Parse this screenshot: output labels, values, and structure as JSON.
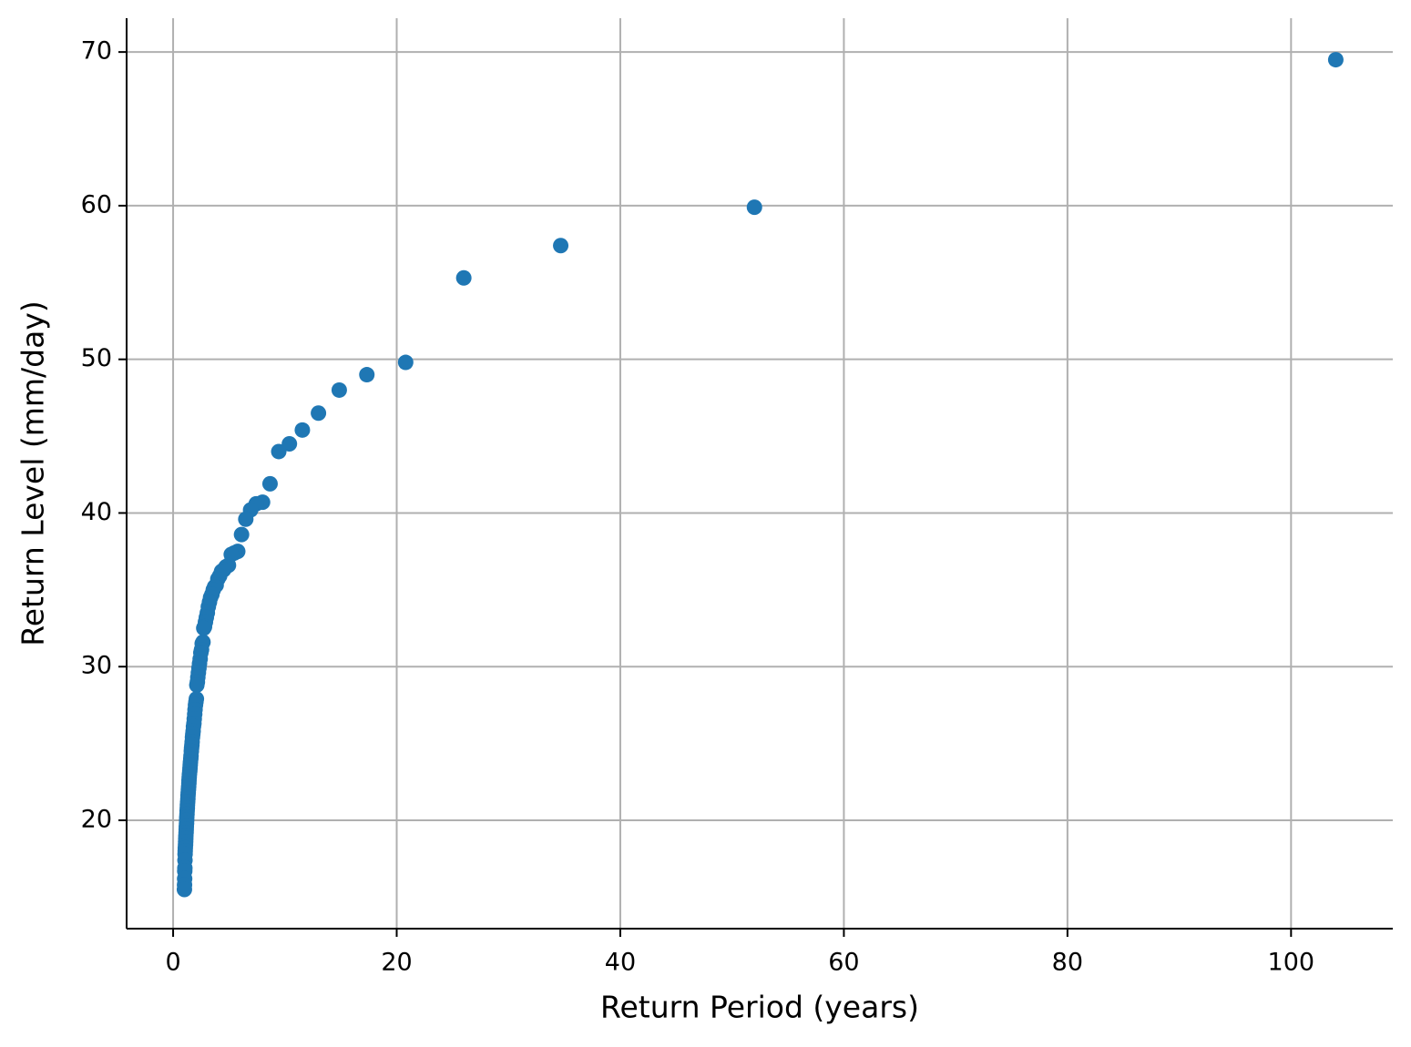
{
  "chart_data": {
    "type": "scatter",
    "x_label": "Return Period (years)",
    "y_label": "Return Level (mm/day)",
    "color": "#1f77b4",
    "grid": true,
    "xlim": [
      -4.16,
      109.1
    ],
    "ylim": [
      12.95,
      72.2
    ],
    "xticks": [
      0,
      20,
      40,
      60,
      80,
      100
    ],
    "yticks": [
      20,
      30,
      40,
      50,
      60,
      70
    ],
    "x": [
      104,
      52,
      34.67,
      26,
      20.8,
      17.33,
      14.86,
      13,
      11.56,
      10.4,
      9.45,
      8.67,
      8,
      7.43,
      6.93,
      6.5,
      6.12,
      5.78,
      5.47,
      5.2,
      4.95,
      4.73,
      4.52,
      4.33,
      4.16,
      4,
      3.85,
      3.71,
      3.59,
      3.47,
      3.35,
      3.25,
      3.15,
      3.06,
      2.97,
      2.89,
      2.81,
      2.74,
      2.67,
      2.6,
      2.54,
      2.48,
      2.42,
      2.36,
      2.31,
      2.26,
      2.21,
      2.17,
      2.12,
      2.08,
      2.04,
      2,
      1.96,
      1.93,
      1.89,
      1.86,
      1.82,
      1.79,
      1.76,
      1.73,
      1.7,
      1.68,
      1.65,
      1.63,
      1.6,
      1.58,
      1.55,
      1.53,
      1.51,
      1.49,
      1.46,
      1.44,
      1.42,
      1.41,
      1.39,
      1.37,
      1.35,
      1.33,
      1.32,
      1.3,
      1.28,
      1.27,
      1.25,
      1.24,
      1.22,
      1.21,
      1.2,
      1.18,
      1.17,
      1.16,
      1.14,
      1.13,
      1.12,
      1.11,
      1.09,
      1.08,
      1.07,
      1.06,
      1.05,
      1.04,
      1.03,
      1.02,
      1.01
    ],
    "values": [
      69.5,
      59.9,
      57.4,
      55.3,
      49.8,
      49.0,
      48.0,
      46.5,
      45.4,
      44.5,
      44.0,
      41.9,
      40.7,
      40.6,
      40.2,
      39.6,
      38.6,
      37.5,
      37.4,
      37.3,
      36.6,
      36.5,
      36.3,
      36.2,
      35.9,
      35.7,
      35.3,
      35.2,
      35.0,
      34.7,
      34.5,
      34.2,
      33.9,
      33.5,
      33.2,
      32.9,
      32.6,
      32.5,
      31.6,
      31.5,
      31.1,
      30.9,
      30.5,
      30.2,
      29.9,
      29.6,
      29.3,
      29.0,
      28.8,
      27.9,
      27.7,
      27.5,
      27.2,
      26.9,
      26.6,
      26.3,
      26.1,
      25.8,
      25.6,
      25.4,
      25.1,
      24.9,
      24.7,
      24.5,
      24.2,
      24.0,
      23.8,
      23.6,
      23.4,
      23.2,
      23.0,
      22.8,
      22.6,
      22.4,
      22.2,
      22.0,
      21.8,
      21.6,
      21.4,
      21.2,
      21.0,
      20.8,
      20.6,
      20.4,
      20.2,
      20.0,
      19.8,
      19.6,
      19.4,
      19.2,
      19.0,
      18.8,
      18.6,
      18.4,
      18.2,
      18.0,
      17.8,
      17.4,
      16.9,
      16.7,
      16.2,
      15.8,
      15.5
    ]
  }
}
